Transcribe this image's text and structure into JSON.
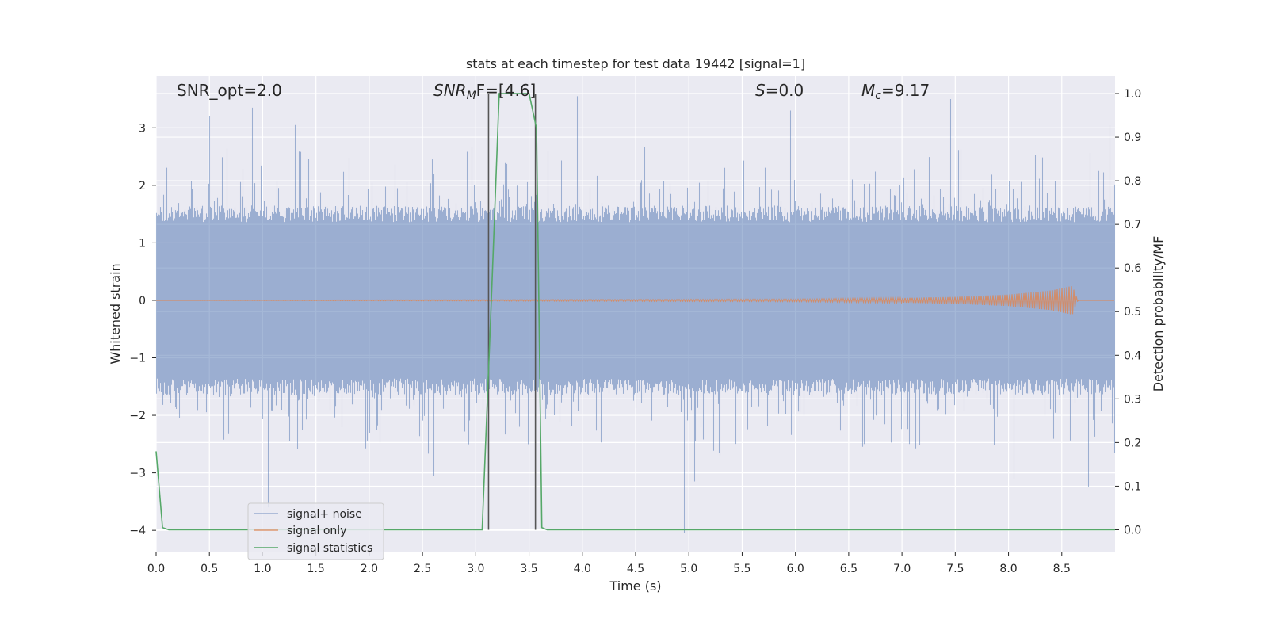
{
  "chart_data": {
    "type": "line",
    "title": "stats at each timestep for test data 19442 [signal=1]",
    "xlabel": "Time (s)",
    "ylabel_left": "Whitened strain",
    "ylabel_right": "Detection probability/MF",
    "xlim": [
      0.0,
      9.0
    ],
    "ylim_left": [
      -4.37,
      3.9
    ],
    "ylim_right": [
      -0.05,
      1.04
    ],
    "x_ticks": [
      "0.0",
      "0.5",
      "1.0",
      "1.5",
      "2.0",
      "2.5",
      "3.0",
      "3.5",
      "4.0",
      "4.5",
      "5.0",
      "5.5",
      "6.0",
      "6.5",
      "7.0",
      "7.5",
      "8.0",
      "8.5"
    ],
    "y_ticks_left": [
      "3",
      "2",
      "1",
      "0",
      "−1",
      "−2",
      "−3",
      "−4"
    ],
    "y_ticks_right": [
      "1.0",
      "0.9",
      "0.8",
      "0.7",
      "0.6",
      "0.5",
      "0.4",
      "0.3",
      "0.2",
      "0.1",
      "0.0"
    ],
    "grid": true,
    "legend_position": "lower-left",
    "annotations": {
      "snr_opt": "SNR_opt=2.0",
      "snr_mf_main": "SNR",
      "snr_mf_sub": "M",
      "snr_mf_rest": "F=[4.6]",
      "s_var": "S",
      "s_rest": "=0.0",
      "mc_var": "M",
      "mc_sub": "c",
      "mc_rest": "=9.17"
    },
    "series": [
      {
        "name": "signal+ noise",
        "color": "#4c72b0",
        "style": "filled noise trace",
        "typical_range": [
          -1.6,
          1.6
        ],
        "notable_peaks": [
          {
            "x": 0.5,
            "y": 3.2
          },
          {
            "x": 0.9,
            "y": 3.35
          },
          {
            "x": 1.3,
            "y": 3.05
          },
          {
            "x": 3.95,
            "y": 3.55
          },
          {
            "x": 5.95,
            "y": 3.3
          },
          {
            "x": 7.45,
            "y": 3.5
          },
          {
            "x": 8.95,
            "y": 3.05
          }
        ],
        "notable_troughs": [
          {
            "x": 1.05,
            "y": -3.6
          },
          {
            "x": 2.6,
            "y": -3.05
          },
          {
            "x": 4.95,
            "y": -4.05
          },
          {
            "x": 5.05,
            "y": -3.15
          },
          {
            "x": 8.05,
            "y": -3.1
          },
          {
            "x": 8.75,
            "y": -3.25
          }
        ]
      },
      {
        "name": "signal only",
        "color": "#dd8452",
        "style": "chirp",
        "envelope": [
          {
            "x": 0.0,
            "y": 0.0
          },
          {
            "x": 6.0,
            "y": 0.02
          },
          {
            "x": 7.0,
            "y": 0.04
          },
          {
            "x": 7.5,
            "y": 0.06
          },
          {
            "x": 8.0,
            "y": 0.1
          },
          {
            "x": 8.4,
            "y": 0.17
          },
          {
            "x": 8.6,
            "y": 0.25
          },
          {
            "x": 8.65,
            "y": 0.0
          },
          {
            "x": 9.0,
            "y": 0.0
          }
        ]
      },
      {
        "name": "signal statistics",
        "color": "#55a868",
        "axis": "right",
        "points": [
          {
            "x": 0.0,
            "y": 0.18
          },
          {
            "x": 0.06,
            "y": 0.005
          },
          {
            "x": 0.12,
            "y": 0.0
          },
          {
            "x": 3.06,
            "y": 0.0
          },
          {
            "x": 3.15,
            "y": 0.55
          },
          {
            "x": 3.22,
            "y": 1.0
          },
          {
            "x": 3.5,
            "y": 1.0
          },
          {
            "x": 3.57,
            "y": 0.92
          },
          {
            "x": 3.62,
            "y": 0.005
          },
          {
            "x": 3.67,
            "y": 0.0
          },
          {
            "x": 9.0,
            "y": 0.0
          }
        ]
      }
    ],
    "vertical_markers": {
      "color": "#555555",
      "x": [
        3.12,
        3.56
      ]
    }
  }
}
